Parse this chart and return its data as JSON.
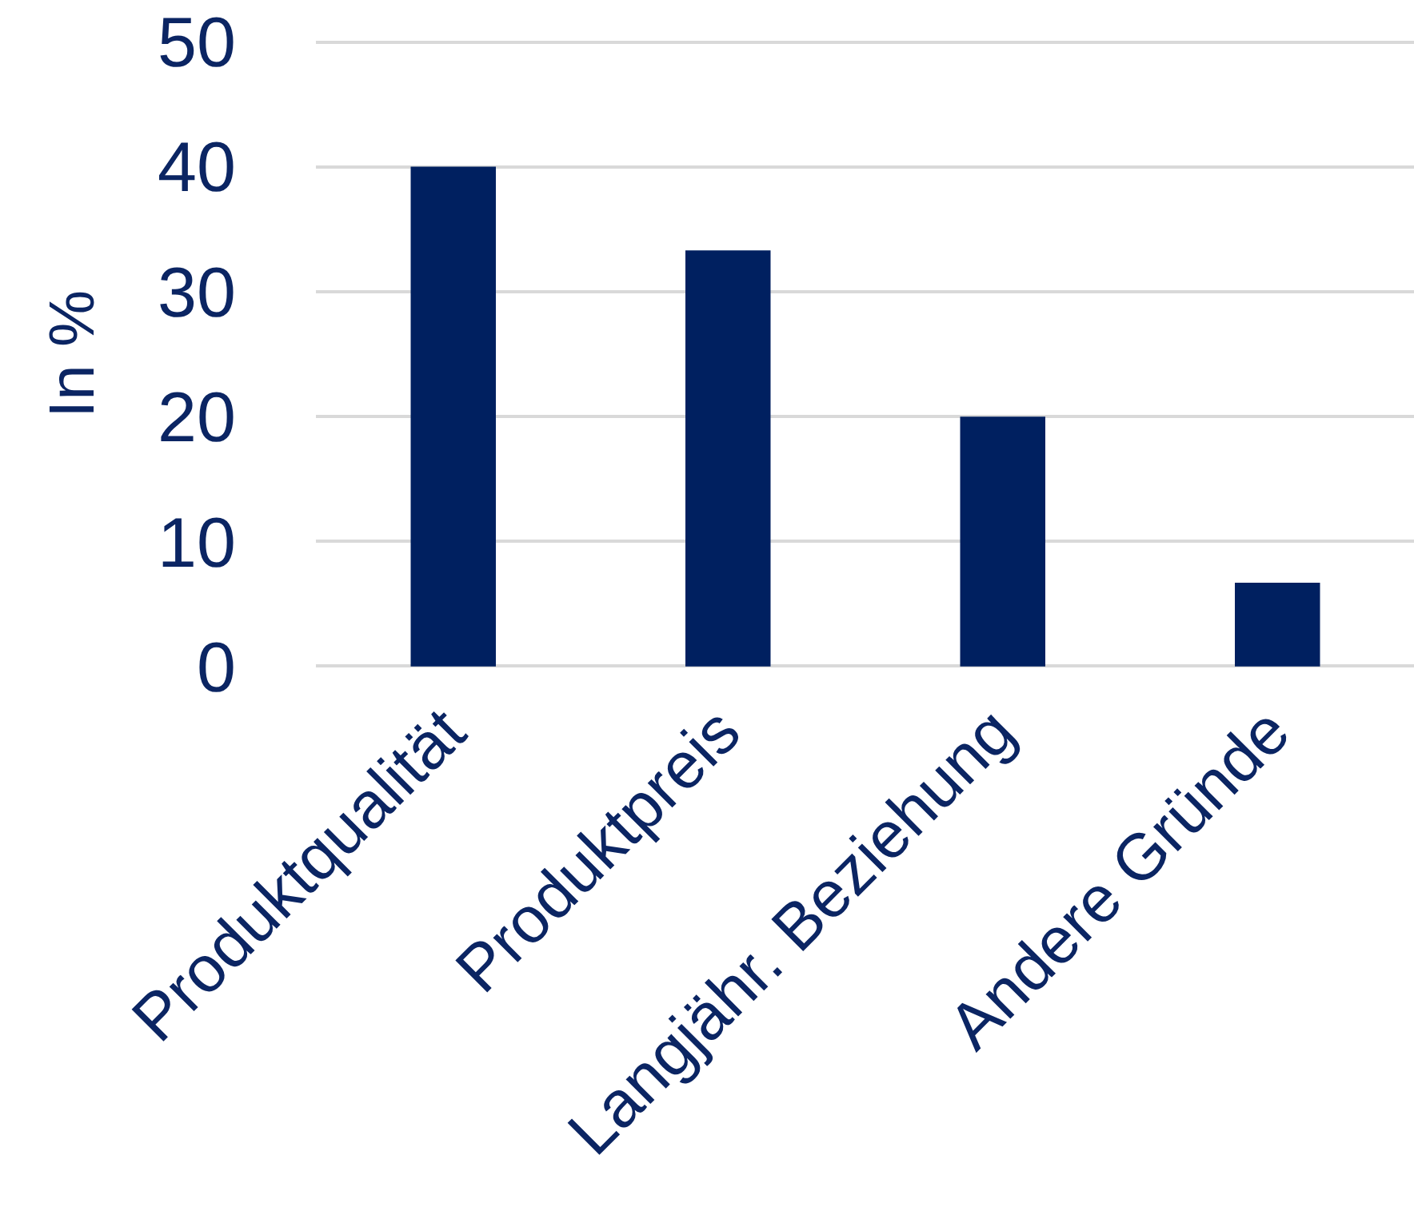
{
  "chart_data": {
    "type": "bar",
    "ylabel": "In %",
    "categories": [
      "Produktqualität",
      "Produktpreis",
      "Langjähr. Beziehung",
      "Andere Gründe"
    ],
    "values": [
      40,
      33.3,
      20,
      6.7
    ],
    "color": "#002060",
    "ylim": [
      0,
      50
    ],
    "yticks": [
      0,
      10,
      20,
      30,
      40,
      50
    ],
    "grid": "y"
  }
}
